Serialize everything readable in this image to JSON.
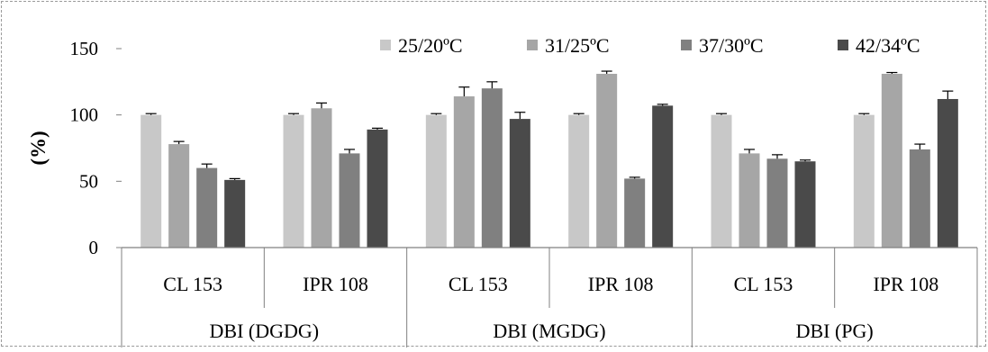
{
  "chart_data": {
    "type": "bar",
    "title": "",
    "xlabel": "",
    "ylabel": "(%)",
    "ylim": [
      0,
      150
    ],
    "yticks": [
      0,
      50,
      100,
      150
    ],
    "grid": false,
    "legend_position": "top-right",
    "groups": [
      {
        "label": "DBI (DGDG)",
        "categories": [
          "CL 153",
          "IPR 108"
        ]
      },
      {
        "label": "DBI (MGDG)",
        "categories": [
          "CL 153",
          "IPR 108"
        ]
      },
      {
        "label": "DBI (PG)",
        "categories": [
          "CL 153",
          "IPR 108"
        ]
      }
    ],
    "categories": [
      "CL 153",
      "IPR 108",
      "CL 153",
      "IPR 108",
      "CL 153",
      "IPR 108"
    ],
    "series": [
      {
        "name": "25/20ºC",
        "color": "#c8c8c8",
        "values": [
          100,
          100,
          100,
          100,
          100,
          100
        ],
        "errors": [
          1,
          1,
          1,
          1,
          1,
          1
        ]
      },
      {
        "name": "31/25ºC",
        "color": "#a6a6a6",
        "values": [
          78,
          105,
          114,
          131,
          71,
          131
        ],
        "errors": [
          2,
          4,
          7,
          2,
          3,
          1
        ]
      },
      {
        "name": "37/30ºC",
        "color": "#808080",
        "values": [
          60,
          71,
          120,
          52,
          67,
          74
        ],
        "errors": [
          3,
          3,
          5,
          1,
          3,
          4
        ]
      },
      {
        "name": "42/34ºC",
        "color": "#4a4a4a",
        "values": [
          51,
          89,
          97,
          107,
          65,
          112
        ],
        "errors": [
          1,
          1,
          5,
          1,
          1,
          6
        ]
      }
    ]
  }
}
